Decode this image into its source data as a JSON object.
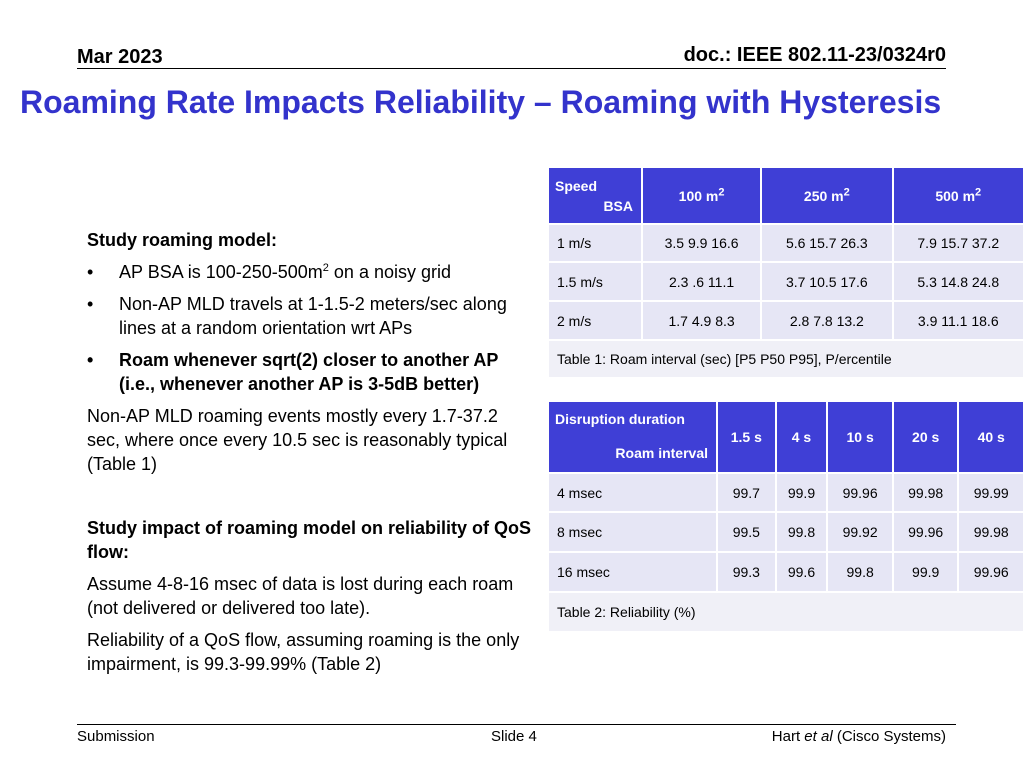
{
  "header": {
    "date": "Mar 2023",
    "doc": "doc.: IEEE 802.11-23/0324r0"
  },
  "title": "Roaming Rate Impacts Reliability – Roaming with Hysteresis",
  "body": {
    "heading1": "Study roaming model:",
    "bullet1_pre": "AP BSA is 100-250-500m",
    "bullet1_sup": "2",
    "bullet1_post": " on a noisy grid",
    "bullet2": "Non-AP MLD travels at 1-1.5-2 meters/sec along lines at a random orientation wrt APs",
    "bullet3": "Roam whenever sqrt(2) closer to another AP (i.e., whenever another AP is 3-5dB better)",
    "para1": "Non-AP MLD roaming events mostly every 1.7-37.2 sec, where once every 10.5 sec is reasonably typical (Table 1)",
    "heading2": "Study impact of roaming model on reliability of QoS flow:",
    "para2": "Assume 4-8-16 msec of data is lost during each roam (not delivered or delivered too late).",
    "para3": "Reliability of a QoS flow, assuming roaming is the only impairment, is 99.3-99.99% (Table 2)"
  },
  "table1": {
    "corner_top": "BSA",
    "corner_bottom": "Speed",
    "cols": [
      {
        "value": "100 m",
        "sup": "2"
      },
      {
        "value": "250 m",
        "sup": "2"
      },
      {
        "value": "500 m",
        "sup": "2"
      }
    ],
    "rows": [
      {
        "label": "1 m/s",
        "cells": [
          "3.5 9.9 16.6",
          "5.6 15.7 26.3",
          "7.9 15.7 37.2"
        ]
      },
      {
        "label": "1.5 m/s",
        "cells": [
          "2.3 .6 11.1",
          "3.7 10.5 17.6",
          "5.3 14.8 24.8"
        ]
      },
      {
        "label": "2 m/s",
        "cells": [
          "1.7 4.9 8.3",
          "2.8 7.8 13.2",
          "3.9 11.1 18.6"
        ]
      }
    ],
    "caption": "Table 1: Roam interval (sec) [P5 P50 P95], P/ercentile"
  },
  "table2": {
    "corner_top": "Roam interval",
    "corner_bottom": "Disruption duration",
    "cols": [
      "1.5 s",
      "4 s",
      "10 s",
      "20 s",
      "40 s"
    ],
    "rows": [
      {
        "label": "4 msec",
        "cells": [
          "99.7",
          "99.9",
          "99.96",
          "99.98",
          "99.99"
        ]
      },
      {
        "label": "8 msec",
        "cells": [
          "99.5",
          "99.8",
          "99.92",
          "99.96",
          "99.98"
        ]
      },
      {
        "label": "16 msec",
        "cells": [
          "99.3",
          "99.6",
          "99.8",
          "99.9",
          "99.96"
        ]
      }
    ],
    "caption": "Table 2: Reliability (%)"
  },
  "footer": {
    "left": "Submission",
    "center": "Slide 4",
    "right_pre": "Hart ",
    "right_em": "et al",
    "right_post": " (Cisco Systems)"
  },
  "colors": {
    "title": "#3333cc",
    "table_header": "#3f3fd6",
    "table_row": "#e6e6f5"
  }
}
